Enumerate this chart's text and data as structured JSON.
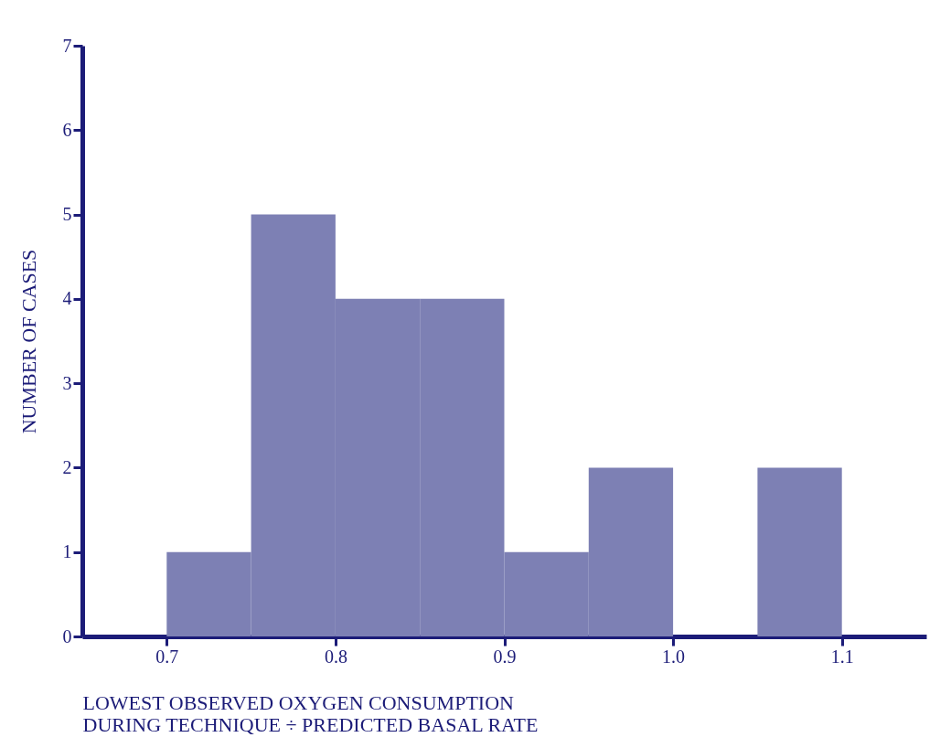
{
  "chart_data": {
    "type": "histogram",
    "bins": [
      0.7,
      0.75,
      0.8,
      0.85,
      0.9,
      0.95,
      1.0,
      1.05,
      1.1
    ],
    "values": [
      1,
      5,
      4,
      4,
      1,
      2,
      0,
      2
    ],
    "color": "#7d80b4",
    "xlabel": "LOWEST OBSERVED OXYGEN CONSUMPTION\nDURING TECHNIQUE ÷ PREDICTED BASAL RATE",
    "ylabel": "NUMBER OF CASES",
    "xlim": [
      0.65,
      1.15
    ],
    "xticks": [
      0.7,
      0.8,
      0.9,
      {
        "value": 1.0,
        "label": "1.0"
      },
      1.1
    ],
    "ylim": [
      0,
      7
    ],
    "yticks": [
      0,
      1,
      2,
      3,
      4,
      5,
      6,
      7
    ],
    "grid": false
  }
}
